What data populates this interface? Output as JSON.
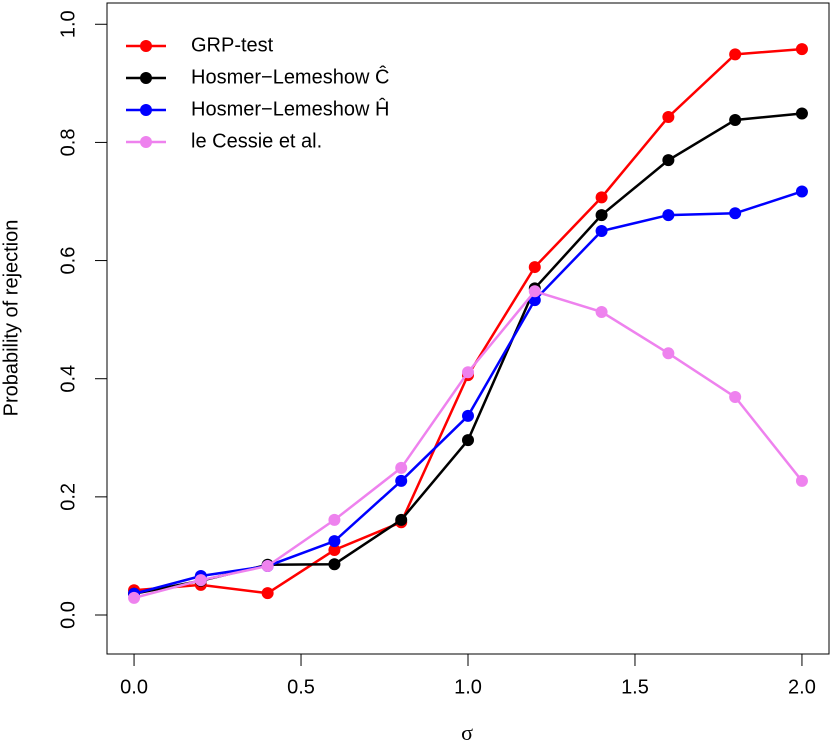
{
  "chart_data": {
    "type": "line",
    "x_label": "σ",
    "y_label": "Probability of rejection",
    "x": [
      0,
      0.2,
      0.4,
      0.6,
      0.8,
      1.0,
      1.2,
      1.4,
      1.6,
      1.8,
      2.0
    ],
    "series": [
      {
        "name": "GRP-test",
        "color": "#ff0000",
        "values": [
          0.042,
          0.051,
          0.037,
          0.11,
          0.157,
          0.406,
          0.589,
          0.707,
          0.843,
          0.949,
          0.958
        ]
      },
      {
        "name": "Hosmer−Lemeshow Ĉ",
        "color": "#000000",
        "values": [
          0.036,
          0.058,
          0.085,
          0.086,
          0.161,
          0.296,
          0.553,
          0.677,
          0.77,
          0.838,
          0.849
        ]
      },
      {
        "name": "Hosmer−Lemeshow Ĥ",
        "color": "#0000ff",
        "values": [
          0.036,
          0.066,
          0.083,
          0.125,
          0.227,
          0.337,
          0.533,
          0.65,
          0.677,
          0.68,
          0.717
        ]
      },
      {
        "name": "le Cessie et al.",
        "color": "#ee82ee",
        "values": [
          0.029,
          0.059,
          0.083,
          0.161,
          0.249,
          0.411,
          0.548,
          0.513,
          0.443,
          0.369,
          0.227
        ]
      }
    ],
    "xlim": [
      -0.081,
      2.081
    ],
    "ylim": [
      -0.066,
      1.036
    ],
    "xticks": [
      {
        "value": 0,
        "label": "0.0"
      },
      {
        "value": 0.5,
        "label": "0.5"
      },
      {
        "value": 1,
        "label": "1.0"
      },
      {
        "value": 1.5,
        "label": "1.5"
      },
      {
        "value": 2,
        "label": "2.0"
      }
    ],
    "yticks": [
      {
        "value": 0,
        "label": "0.0"
      },
      {
        "value": 0.2,
        "label": "0.2"
      },
      {
        "value": 0.4,
        "label": "0.4"
      },
      {
        "value": 0.6,
        "label": "0.6"
      },
      {
        "value": 0.8,
        "label": "0.8"
      },
      {
        "value": 1,
        "label": "1.0"
      }
    ],
    "legend": "top-left"
  }
}
